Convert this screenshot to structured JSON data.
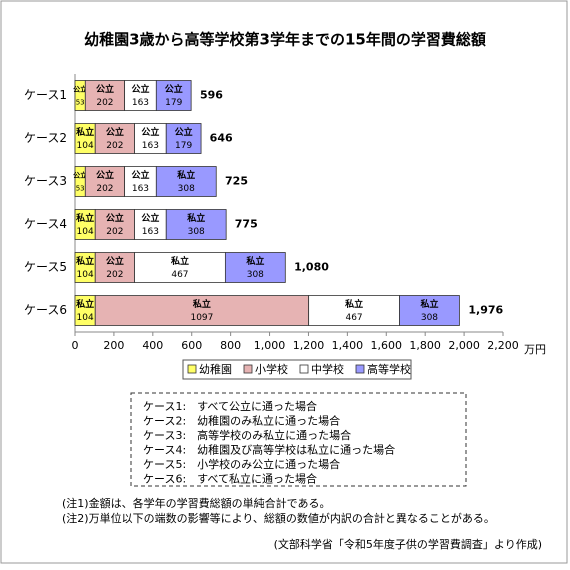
{
  "chart_data": {
    "type": "stacked-bar-horizontal",
    "title": "幼稚園3歳から高等学校第3学年までの15年間の学習費総額",
    "categories": [
      "ケース1",
      "ケース2",
      "ケース3",
      "ケース4",
      "ケース5",
      "ケース6"
    ],
    "series": [
      {
        "name": "幼稚園",
        "color": "#ffff66",
        "values": [
          53,
          104,
          53,
          104,
          104,
          104
        ],
        "kinds": [
          "公立",
          "私立",
          "公立",
          "私立",
          "私立",
          "私立"
        ]
      },
      {
        "name": "小学校",
        "color": "#e6b3b3",
        "values": [
          202,
          202,
          202,
          202,
          202,
          1097
        ],
        "kinds": [
          "公立",
          "公立",
          "公立",
          "公立",
          "公立",
          "私立"
        ]
      },
      {
        "name": "中学校",
        "color": "#ffffff",
        "values": [
          163,
          163,
          163,
          163,
          467,
          467
        ],
        "kinds": [
          "公立",
          "公立",
          "公立",
          "公立",
          "私立",
          "私立"
        ]
      },
      {
        "name": "高等学校",
        "color": "#9999ff",
        "values": [
          179,
          179,
          308,
          308,
          308,
          308
        ],
        "kinds": [
          "公立",
          "公立",
          "私立",
          "私立",
          "私立",
          "私立"
        ]
      }
    ],
    "totals": [
      596,
      646,
      725,
      775,
      1080,
      1976
    ],
    "total_labels": [
      "596",
      "646",
      "725",
      "775",
      "1,080",
      "1,976"
    ],
    "xlim": [
      0,
      2200
    ],
    "xticks": [
      0,
      200,
      400,
      600,
      800,
      {
        "value": 1000,
        "label": "1,000"
      },
      {
        "value": 1200,
        "label": "1,200"
      },
      {
        "value": 1400,
        "label": "1,400"
      },
      {
        "value": 1600,
        "label": "1,600"
      },
      {
        "value": 1800,
        "label": "1,800"
      },
      {
        "value": 2000,
        "label": "2,000"
      },
      {
        "value": 2200,
        "label": "2,200"
      }
    ],
    "x_unit": "万円",
    "grid": false,
    "legend": "bottom"
  },
  "case_descriptions": [
    "ケース1:　すべて公立に通った場合",
    "ケース2:　幼稚園のみ私立に通った場合",
    "ケース3:　高等学校のみ私立に通った場合",
    "ケース4:　幼稚園及び高等学校は私立に通った場合",
    "ケース5:　小学校のみ公立に通った場合",
    "ケース6:　すべて私立に通った場合"
  ],
  "notes": [
    "(注1)金額は、各学年の学習費総額の単純合計である。",
    "(注2)万単位以下の端数の影響等により、総額の数値が内訳の合計と異なることがある。"
  ],
  "source": "(文部科学省「令和5年度子供の学習費調査」より作成)"
}
